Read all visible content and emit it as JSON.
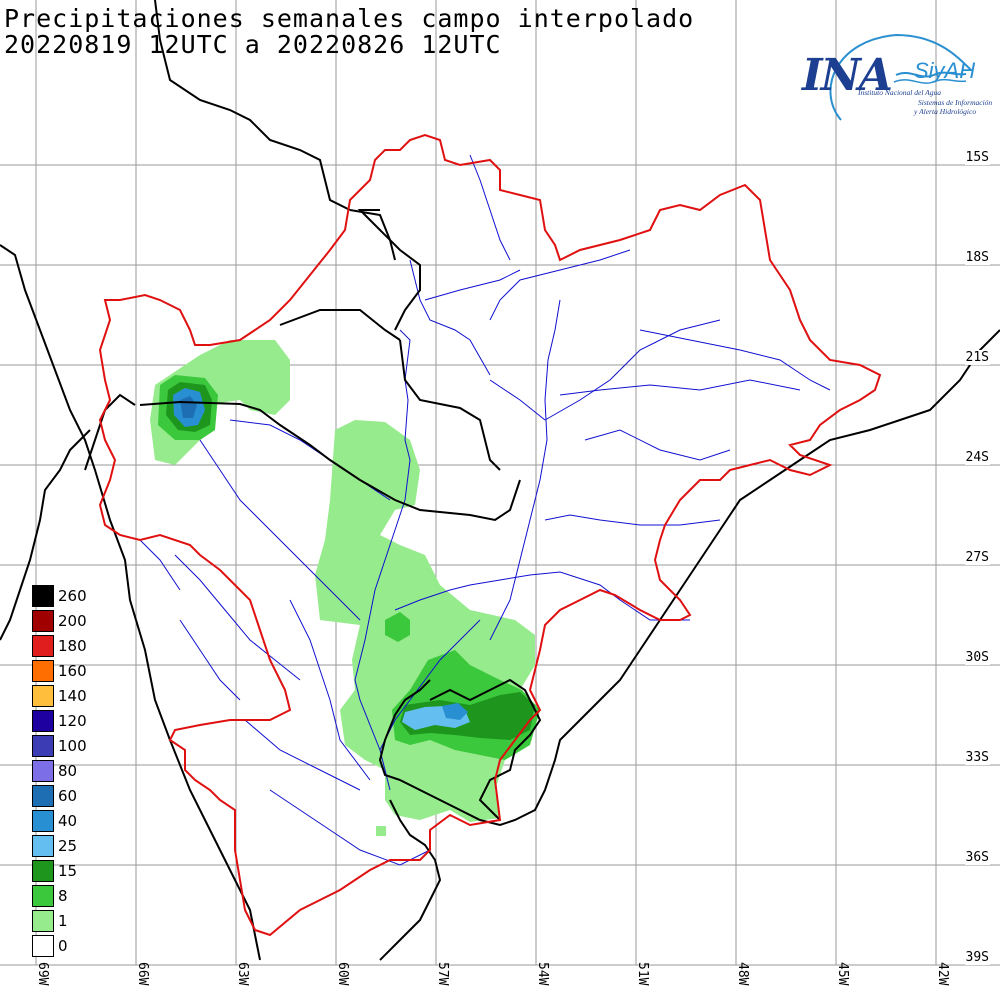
{
  "title": {
    "line1": "Precipitaciones semanales campo interpolado",
    "line2": "20220819 12UTC a 20220826 12UTC"
  },
  "logo": {
    "main": "INA",
    "sub": "SiyAH",
    "line1": "Instituto Nacional del Agua",
    "line2": "Sistemas de Información",
    "line3": "y Alerta Hidrológico"
  },
  "lat_labels": [
    "15S",
    "18S",
    "21S",
    "24S",
    "27S",
    "30S",
    "33S",
    "36S",
    "39S"
  ],
  "lon_labels": [
    "69W",
    "66W",
    "63W",
    "60W",
    "57W",
    "54W",
    "51W",
    "48W",
    "45W",
    "42W"
  ],
  "legend": [
    {
      "label": "260",
      "color": "#000000"
    },
    {
      "label": "200",
      "color": "#a00000"
    },
    {
      "label": "180",
      "color": "#e01e1e"
    },
    {
      "label": "160",
      "color": "#ff6e00"
    },
    {
      "label": "140",
      "color": "#ffbe3c"
    },
    {
      "label": "120",
      "color": "#1e00a0"
    },
    {
      "label": "100",
      "color": "#3c3cb4"
    },
    {
      "label": "80",
      "color": "#7b6ee6"
    },
    {
      "label": "60",
      "color": "#1e6eb4"
    },
    {
      "label": "40",
      "color": "#2890d2"
    },
    {
      "label": "25",
      "color": "#64bef0"
    },
    {
      "label": "15",
      "color": "#1e961e"
    },
    {
      "label": "8",
      "color": "#3cc83c"
    },
    {
      "label": "1",
      "color": "#96eb8c"
    },
    {
      "label": "0",
      "color": "#ffffff"
    }
  ],
  "colors": {
    "basin_border": "#e01010",
    "rivers": "#1010d0",
    "borders": "#000000"
  }
}
